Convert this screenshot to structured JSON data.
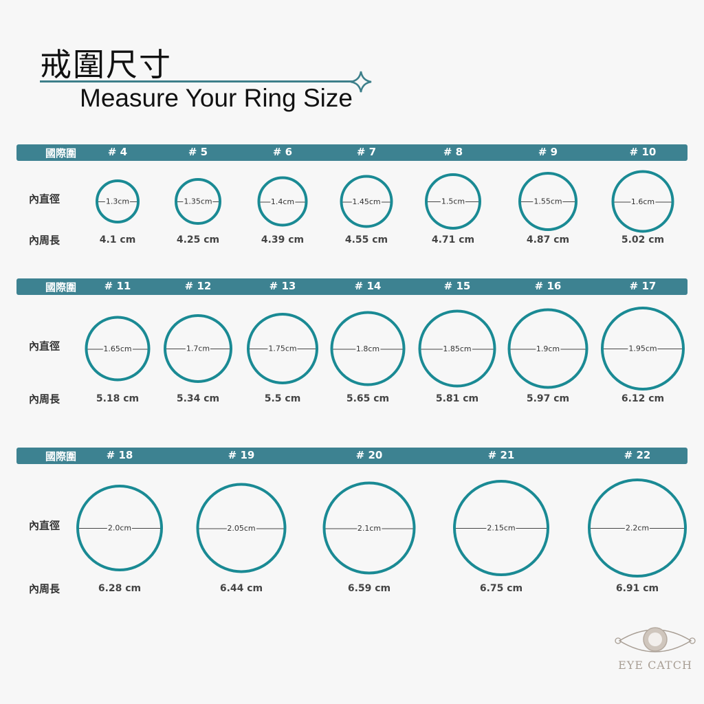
{
  "header": {
    "title_zh": "戒圍尺寸",
    "title_en": "Measure Your Ring Size"
  },
  "labels": {
    "size_col": "國際圍",
    "diameter": "內直徑",
    "circumference": "內周長"
  },
  "colors": {
    "bar": "#3d8291",
    "ring": "#1a8a94",
    "logo": "#a89e94"
  },
  "sections": [
    {
      "sizes": [
        {
          "size": "# 4",
          "diameter": "1.3cm",
          "circumference": "4.1 cm"
        },
        {
          "size": "# 5",
          "diameter": "1.35cm",
          "circumference": "4.25 cm"
        },
        {
          "size": "# 6",
          "diameter": "1.4cm",
          "circumference": "4.39 cm"
        },
        {
          "size": "# 7",
          "diameter": "1.45cm",
          "circumference": "4.55 cm"
        },
        {
          "size": "# 8",
          "diameter": "1.5cm",
          "circumference": "4.71 cm"
        },
        {
          "size": "# 9",
          "diameter": "1.55cm",
          "circumference": "4.87 cm"
        },
        {
          "size": "# 10",
          "diameter": "1.6cm",
          "circumference": "5.02 cm"
        }
      ]
    },
    {
      "sizes": [
        {
          "size": "# 11",
          "diameter": "1.65cm",
          "circumference": "5.18 cm"
        },
        {
          "size": "# 12",
          "diameter": "1.7cm",
          "circumference": "5.34 cm"
        },
        {
          "size": "# 13",
          "diameter": "1.75cm",
          "circumference": "5.5 cm"
        },
        {
          "size": "# 14",
          "diameter": "1.8cm",
          "circumference": "5.65 cm"
        },
        {
          "size": "# 15",
          "diameter": "1.85cm",
          "circumference": "5.81 cm"
        },
        {
          "size": "# 16",
          "diameter": "1.9cm",
          "circumference": "5.97 cm"
        },
        {
          "size": "# 17",
          "diameter": "1.95cm",
          "circumference": "6.12 cm"
        }
      ]
    },
    {
      "sizes": [
        {
          "size": "# 18",
          "diameter": "2.0cm",
          "circumference": "6.28 cm"
        },
        {
          "size": "# 19",
          "diameter": "2.05cm",
          "circumference": "6.44 cm"
        },
        {
          "size": "# 20",
          "diameter": "2.1cm",
          "circumference": "6.59 cm"
        },
        {
          "size": "# 21",
          "diameter": "2.15cm",
          "circumference": "6.75 cm"
        },
        {
          "size": "# 22",
          "diameter": "2.2cm",
          "circumference": "6.91 cm"
        }
      ]
    }
  ],
  "logo": {
    "text": "EYE CATCH"
  }
}
